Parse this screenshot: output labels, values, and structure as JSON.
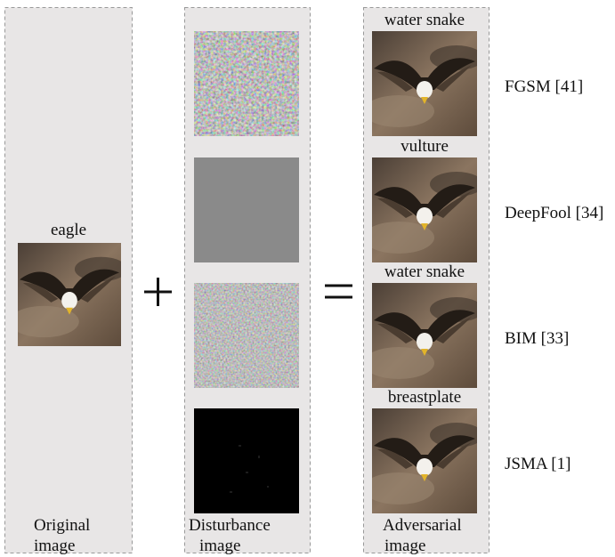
{
  "original": {
    "label": "eagle",
    "caption": [
      "Original",
      "image"
    ]
  },
  "disturbance": {
    "caption": [
      "Disturbance",
      "image"
    ]
  },
  "adversarial": {
    "caption": [
      "Adversarial",
      "image"
    ],
    "rows": [
      {
        "prediction": "water snake",
        "method": "FGSM [41]"
      },
      {
        "prediction": "vulture",
        "method": "DeepFool [34]"
      },
      {
        "prediction": "water snake",
        "method": "BIM [33]"
      },
      {
        "prediction": "breastplate",
        "method": "JSMA [1]"
      }
    ]
  }
}
